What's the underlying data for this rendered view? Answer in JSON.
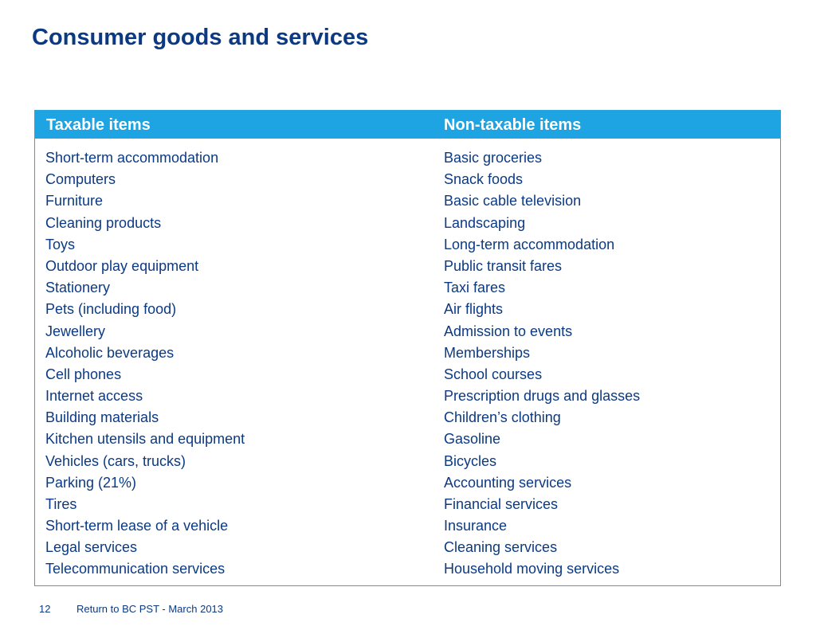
{
  "title": "Consumer goods and services",
  "colors": {
    "title": "#0b3a83",
    "header_bg": "#1ea4e2",
    "border": "#29a8e0",
    "text": "#0b3a83"
  },
  "table": {
    "headers": [
      "Taxable items",
      "Non-taxable items"
    ],
    "taxable": [
      "Short-term accommodation",
      "Computers",
      "Furniture",
      "Cleaning products",
      "Toys",
      "Outdoor play equipment",
      "Stationery",
      "Pets (including food)",
      "Jewellery",
      "Alcoholic beverages",
      "Cell phones",
      "Internet access",
      "Building materials",
      "Kitchen utensils and equipment",
      "Vehicles (cars, trucks)",
      "Parking (21%)",
      "Tires",
      "Short-term lease of a vehicle",
      "Legal services",
      "Telecommunication services"
    ],
    "non_taxable": [
      "Basic groceries",
      "Snack foods",
      "Basic cable television",
      "Landscaping",
      "Long-term accommodation",
      "Public transit fares",
      "Taxi fares",
      "Air flights",
      "Admission to events",
      "Memberships",
      "School courses",
      "Prescription drugs and glasses",
      "Children’s clothing",
      "Gasoline",
      "Bicycles",
      "Accounting services",
      "Financial services",
      "Insurance",
      "Cleaning services",
      "Household moving services"
    ]
  },
  "footer": {
    "page_number": "12",
    "text": "Return to BC PST - March 2013"
  }
}
